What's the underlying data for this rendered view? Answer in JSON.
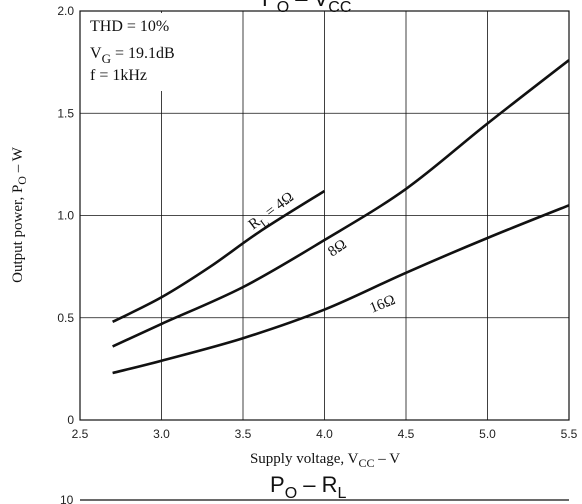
{
  "chart_data": [
    {
      "type": "line",
      "title_main": "P",
      "title_sub_main": "O",
      "title_rest": " – V",
      "title_sub_rest": "CC",
      "xlabel_main": "Supply voltage, V",
      "xlabel_sub": "CC",
      "xlabel_rest": " – V",
      "ylabel_main": "Output power, P",
      "ylabel_sub": "O",
      "ylabel_rest": " – W",
      "xlim": [
        2.5,
        5.5
      ],
      "ylim": [
        0,
        2.0
      ],
      "xticks": [
        "2.5",
        "3.0",
        "3.5",
        "4.0",
        "4.5",
        "5.0",
        "5.5"
      ],
      "yticks": [
        "0",
        "0.5",
        "1.0",
        "1.5",
        "2.0"
      ],
      "grid": true,
      "conditions": {
        "thd": "THD = 10%",
        "vg_main": "V",
        "vg_sub": "G",
        "vg_rest": " = 19.1dB",
        "freq": "f = 1kHz"
      },
      "series": [
        {
          "name": "4Ω",
          "label_main": "R",
          "label_sub": "L",
          "label_rest": " = 4Ω",
          "x": [
            2.7,
            3.0,
            3.3,
            3.6,
            4.0
          ],
          "y": [
            0.48,
            0.6,
            0.75,
            0.92,
            1.12
          ]
        },
        {
          "name": "8Ω",
          "label_main": "8Ω",
          "x": [
            2.7,
            3.0,
            3.5,
            4.0,
            4.5,
            5.0,
            5.5
          ],
          "y": [
            0.36,
            0.47,
            0.65,
            0.88,
            1.13,
            1.45,
            1.76
          ]
        },
        {
          "name": "16Ω",
          "label_main": "16Ω",
          "x": [
            2.7,
            3.0,
            3.5,
            4.0,
            4.5,
            5.0,
            5.5
          ],
          "y": [
            0.23,
            0.29,
            0.4,
            0.54,
            0.72,
            0.89,
            1.05
          ]
        }
      ]
    },
    {
      "type": "line",
      "title_main": "P",
      "title_sub_main": "O",
      "title_rest": " – R",
      "title_sub_rest": "L",
      "yticks_visible": [
        "10"
      ]
    }
  ]
}
